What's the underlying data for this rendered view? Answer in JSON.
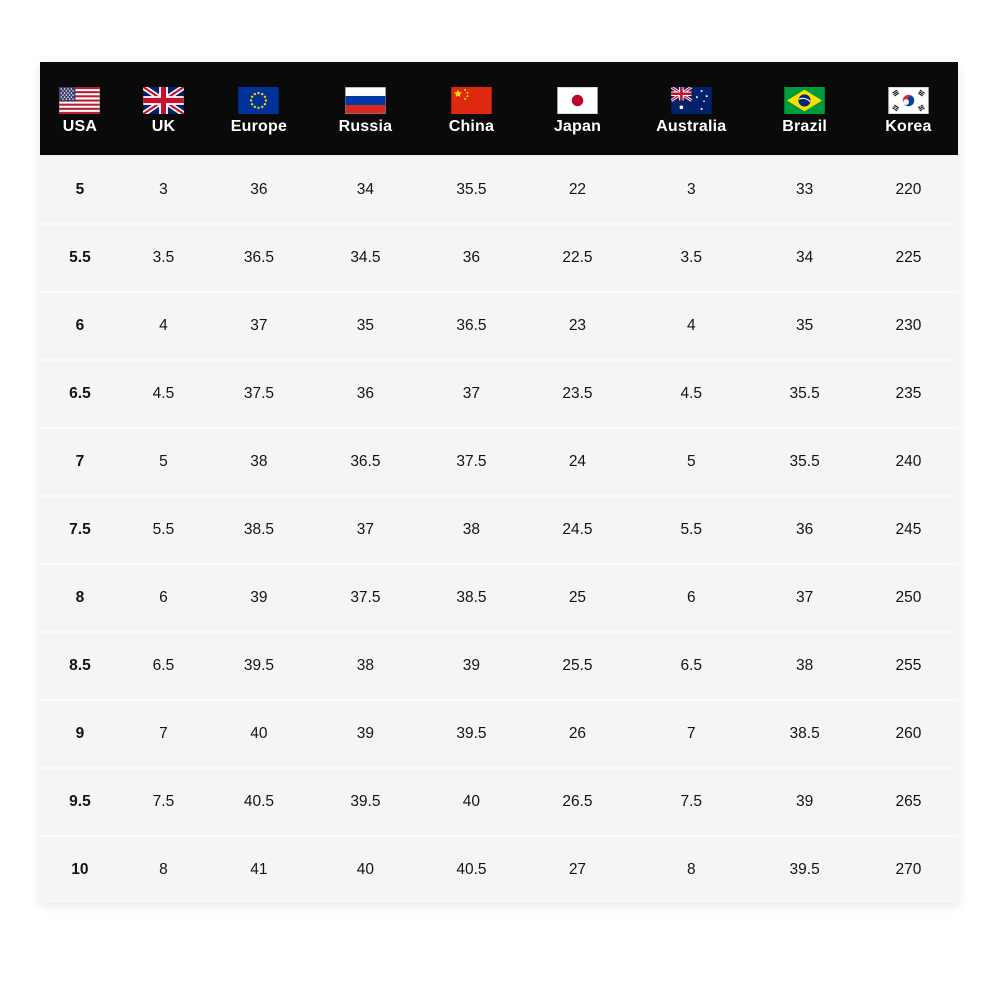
{
  "table": {
    "name": "shoe-size-conversion-table",
    "columns": [
      {
        "label": "USA",
        "flag": "usa-flag"
      },
      {
        "label": "UK",
        "flag": "uk-flag"
      },
      {
        "label": "Europe",
        "flag": "europe-flag"
      },
      {
        "label": "Russia",
        "flag": "russia-flag"
      },
      {
        "label": "China",
        "flag": "china-flag"
      },
      {
        "label": "Japan",
        "flag": "japan-flag"
      },
      {
        "label": "Australia",
        "flag": "australia-flag"
      },
      {
        "label": "Brazil",
        "flag": "brazil-flag"
      },
      {
        "label": "Korea",
        "flag": "korea-flag"
      }
    ],
    "rows": [
      [
        "5",
        "3",
        "36",
        "34",
        "35.5",
        "22",
        "3",
        "33",
        "220"
      ],
      [
        "5.5",
        "3.5",
        "36.5",
        "34.5",
        "36",
        "22.5",
        "3.5",
        "34",
        "225"
      ],
      [
        "6",
        "4",
        "37",
        "35",
        "36.5",
        "23",
        "4",
        "35",
        "230"
      ],
      [
        "6.5",
        "4.5",
        "37.5",
        "36",
        "37",
        "23.5",
        "4.5",
        "35.5",
        "235"
      ],
      [
        "7",
        "5",
        "38",
        "36.5",
        "37.5",
        "24",
        "5",
        "35.5",
        "240"
      ],
      [
        "7.5",
        "5.5",
        "38.5",
        "37",
        "38",
        "24.5",
        "5.5",
        "36",
        "245"
      ],
      [
        "8",
        "6",
        "39",
        "37.5",
        "38.5",
        "25",
        "6",
        "37",
        "250"
      ],
      [
        "8.5",
        "6.5",
        "39.5",
        "38",
        "39",
        "25.5",
        "6.5",
        "38",
        "255"
      ],
      [
        "9",
        "7",
        "40",
        "39",
        "39.5",
        "26",
        "7",
        "38.5",
        "260"
      ],
      [
        "9.5",
        "7.5",
        "40.5",
        "39.5",
        "40",
        "26.5",
        "7.5",
        "39",
        "265"
      ],
      [
        "10",
        "8",
        "41",
        "40",
        "40.5",
        "27",
        "8",
        "39.5",
        "270"
      ]
    ],
    "colors": {
      "header_bg": "#0a0a0a",
      "header_text": "#ffffff",
      "row_bg": "#f5f5f5",
      "row_separator": "#fbfbfb",
      "cell_text": "#141414",
      "page_bg": "#ffffff"
    }
  }
}
